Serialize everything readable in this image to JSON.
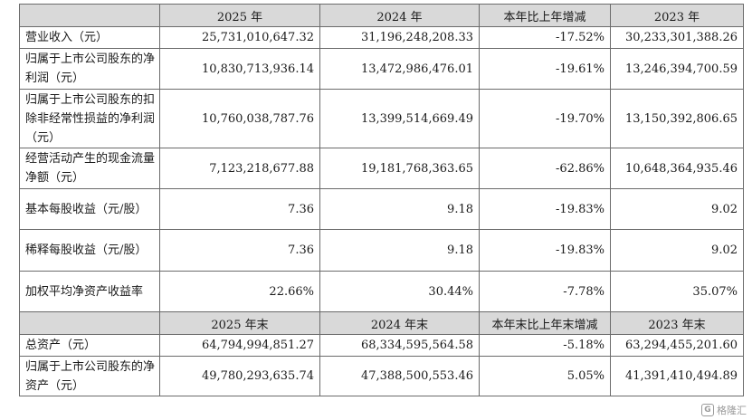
{
  "header1": [
    "2025 年",
    "2024 年",
    "本年比上年增减",
    "2023 年"
  ],
  "rows1": [
    {
      "label": "营业收入（元）",
      "v2025": "25,731,010,647.32",
      "v2024": "31,196,248,208.33",
      "chg": "-17.52%",
      "v2023": "30,233,301,388.26"
    },
    {
      "label": "归属于上市公司股东的净利润（元）",
      "v2025": "10,830,713,936.14",
      "v2024": "13,472,986,476.01",
      "chg": "-19.61%",
      "v2023": "13,246,394,700.59"
    },
    {
      "label": "归属于上市公司股东的扣除非经常性损益的净利润（元）",
      "v2025": "10,760,038,787.76",
      "v2024": "13,399,514,669.49",
      "chg": "-19.70%",
      "v2023": "13,150,392,806.65"
    },
    {
      "label": "经营活动产生的现金流量净额（元）",
      "v2025": "7,123,218,677.88",
      "v2024": "19,181,768,363.65",
      "chg": "-62.86%",
      "v2023": "10,648,364,935.46"
    },
    {
      "label": "基本每股收益（元/股）",
      "v2025": "7.36",
      "v2024": "9.18",
      "chg": "-19.83%",
      "v2023": "9.02"
    },
    {
      "label": "稀释每股收益（元/股）",
      "v2025": "7.36",
      "v2024": "9.18",
      "chg": "-19.83%",
      "v2023": "9.02"
    },
    {
      "label": "加权平均净资产收益率",
      "v2025": "22.66%",
      "v2024": "30.44%",
      "chg": "-7.78%",
      "v2023": "35.07%"
    }
  ],
  "header2": [
    "2025 年末",
    "2024 年末",
    "本年末比上年末增减",
    "2023 年末"
  ],
  "rows2": [
    {
      "label": "总资产（元）",
      "v2025": "64,794,994,851.27",
      "v2024": "68,334,595,564.58",
      "chg": "-5.18%",
      "v2023": "63,294,455,201.60"
    },
    {
      "label": "归属于上市公司股东的净资产（元）",
      "v2025": "49,780,293,635.74",
      "v2024": "47,388,500,553.46",
      "chg": "5.05%",
      "v2023": "41,391,410,494.89"
    }
  ],
  "watermark": {
    "icon": "gelonghui-logo-icon",
    "text": "格隆汇"
  }
}
